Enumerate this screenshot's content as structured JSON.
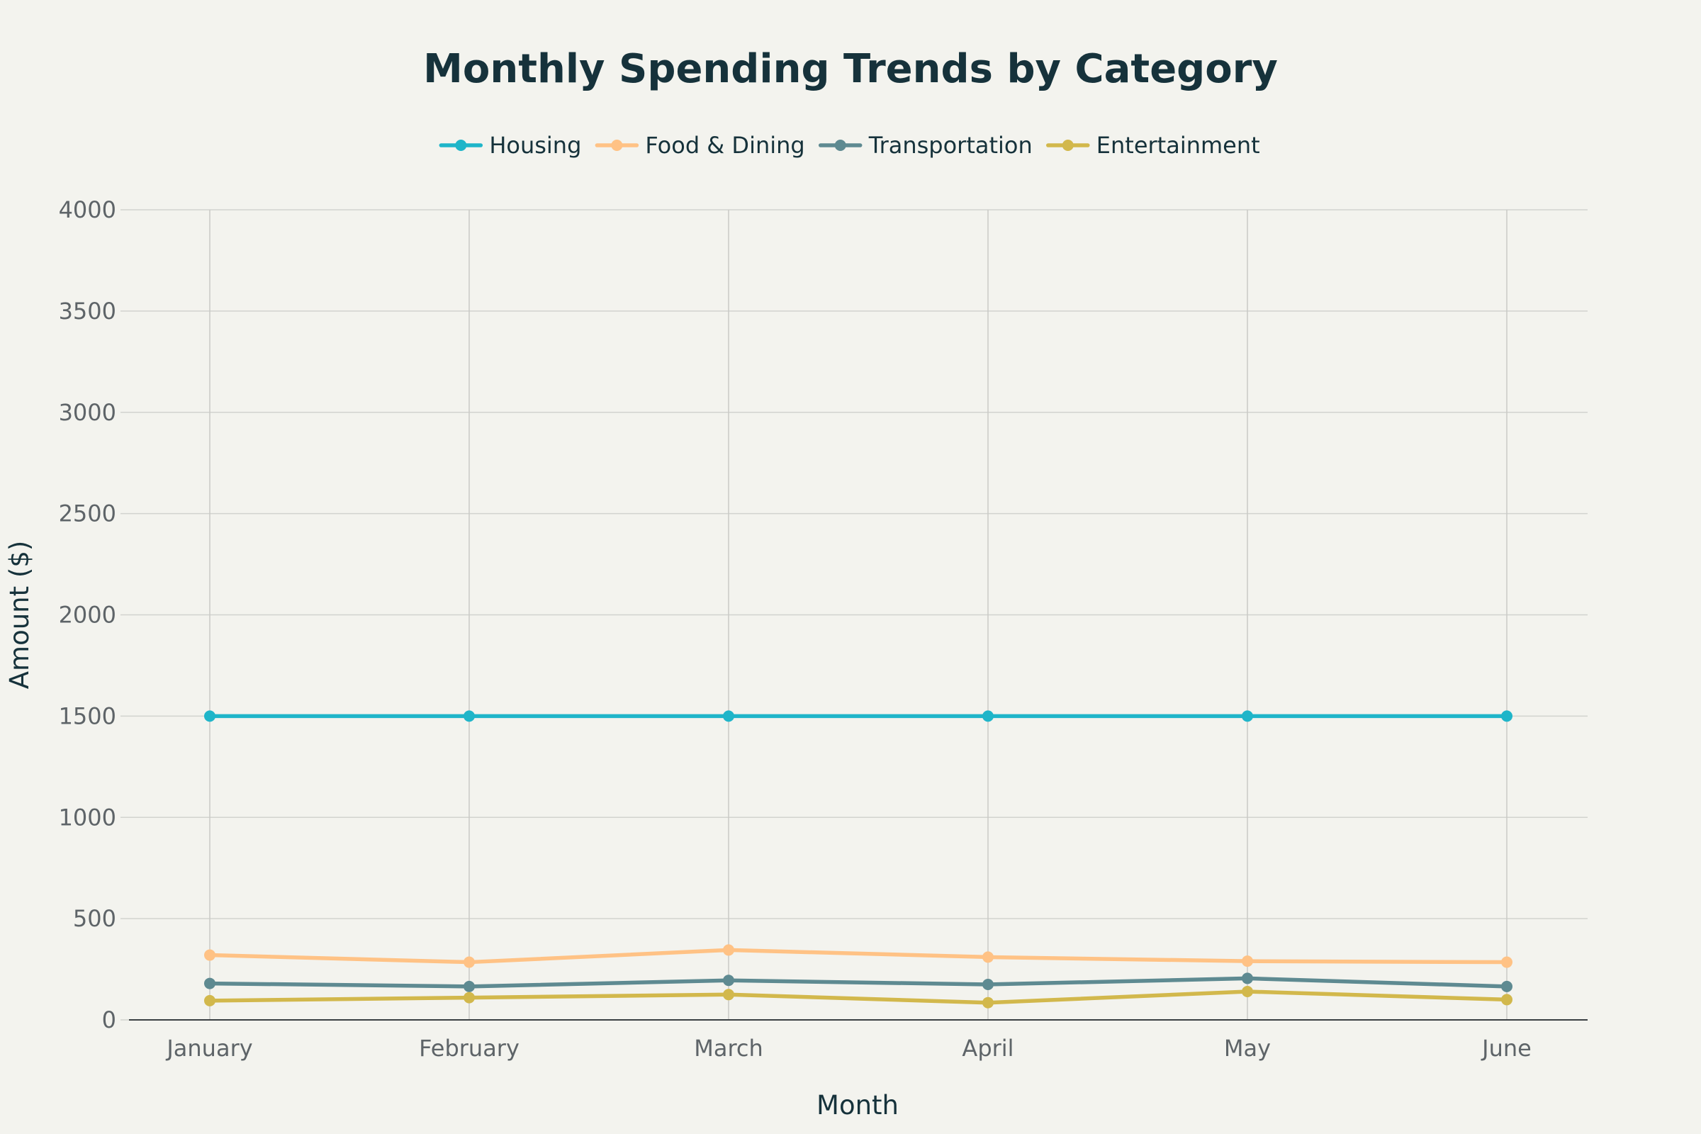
{
  "chart_data": {
    "type": "line",
    "title": "Monthly Spending Trends by Category",
    "xlabel": "Month",
    "ylabel": "Amount ($)",
    "categories": [
      "January",
      "February",
      "March",
      "April",
      "May",
      "June"
    ],
    "ylim": [
      0,
      4000
    ],
    "yticks": [
      0,
      500,
      1000,
      1500,
      2000,
      2500,
      3000,
      3500,
      4000
    ],
    "grid": true,
    "legend_position": "top-center",
    "series": [
      {
        "name": "Housing",
        "color": "#1fb5c9",
        "values": [
          1500,
          1500,
          1500,
          1500,
          1500,
          1500
        ]
      },
      {
        "name": "Food & Dining",
        "color": "#ffc285",
        "values": [
          320,
          285,
          345,
          310,
          290,
          285
        ]
      },
      {
        "name": "Transportation",
        "color": "#5e8a91",
        "values": [
          180,
          165,
          195,
          175,
          205,
          165
        ]
      },
      {
        "name": "Entertainment",
        "color": "#d2b84c",
        "values": [
          95,
          110,
          125,
          85,
          140,
          100
        ]
      }
    ]
  }
}
